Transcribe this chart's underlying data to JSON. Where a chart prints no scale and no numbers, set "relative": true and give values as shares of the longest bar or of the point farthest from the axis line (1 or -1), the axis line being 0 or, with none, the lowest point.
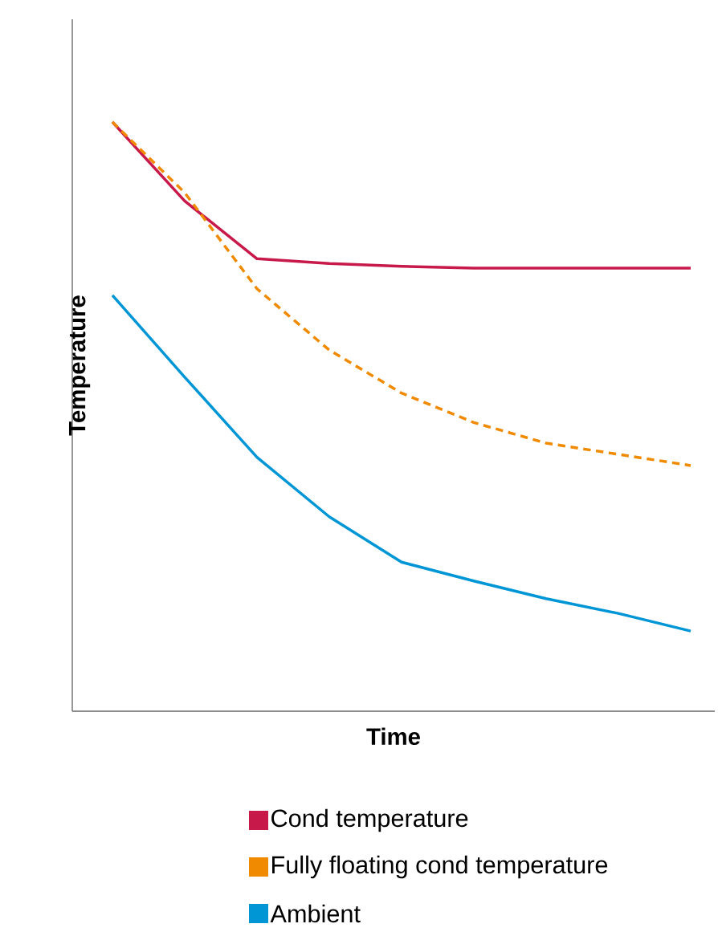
{
  "chart_data": {
    "type": "line",
    "relative": true,
    "xlabel": "Time",
    "ylabel": "Temperature",
    "categories": [
      null,
      null,
      null,
      null,
      null,
      null,
      null,
      null,
      null
    ],
    "legend": "bottom",
    "marker": "none",
    "series": [
      {
        "name": "Cond temperature",
        "color": "#c8194b",
        "line_style": "solid",
        "values": [
          1.0,
          0.866,
          0.768,
          0.76,
          0.755,
          0.752,
          0.752,
          0.752,
          0.752
        ]
      },
      {
        "name": "Fully floating cond temperature",
        "color": "#f08a00",
        "line_style": "dashed",
        "values": [
          1.0,
          0.88,
          0.717,
          0.613,
          0.54,
          0.49,
          0.455,
          0.436,
          0.417
        ]
      },
      {
        "name": "Ambient",
        "color": "#0096d6",
        "line_style": "solid",
        "values": [
          0.706,
          0.567,
          0.431,
          0.33,
          0.253,
          0.221,
          0.191,
          0.166,
          0.136
        ]
      }
    ]
  }
}
